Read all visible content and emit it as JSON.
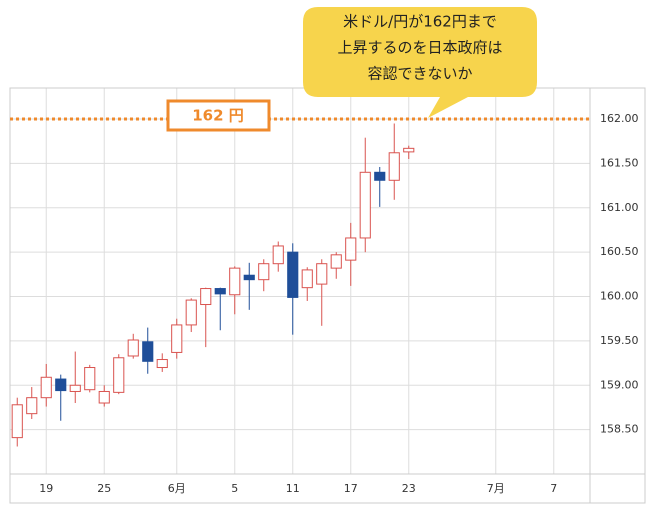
{
  "chart_data": {
    "type": "candlestick",
    "categories": [
      null,
      null,
      "19",
      null,
      null,
      null,
      "25",
      null,
      null,
      null,
      null,
      "6月",
      null,
      null,
      null,
      "5",
      null,
      null,
      null,
      "11",
      null,
      null,
      null,
      "17",
      null,
      null,
      null,
      "23",
      null,
      null,
      null,
      null,
      null,
      "7月",
      null,
      null,
      null,
      "7",
      null,
      null
    ],
    "series": [
      {
        "up_color": "#d9534f",
        "down_color": "#1f4e99",
        "open": [
          158.41,
          158.68,
          158.86,
          159.07,
          158.93,
          158.95,
          158.8,
          158.92,
          159.33,
          159.49,
          159.2,
          159.37,
          159.68,
          159.91,
          160.09,
          160.02,
          160.24,
          160.19,
          160.37,
          160.5,
          160.1,
          160.14,
          160.32,
          160.41,
          160.66,
          161.4,
          161.31,
          161.63,
          null,
          null,
          null,
          null,
          null,
          null,
          null,
          null,
          null,
          null,
          null,
          null
        ],
        "high": [
          158.86,
          158.98,
          159.24,
          159.12,
          159.38,
          159.23,
          159.0,
          159.35,
          159.58,
          159.65,
          159.36,
          159.75,
          159.98,
          160.1,
          160.1,
          160.34,
          160.38,
          160.42,
          160.62,
          160.6,
          160.33,
          160.42,
          160.5,
          160.83,
          161.79,
          161.46,
          161.95,
          161.7,
          null,
          null,
          null,
          null,
          null,
          null,
          null,
          null,
          null,
          null,
          null,
          null
        ],
        "low": [
          158.31,
          158.62,
          158.76,
          158.6,
          158.8,
          158.92,
          158.76,
          158.9,
          159.3,
          159.13,
          159.15,
          159.3,
          159.6,
          159.43,
          159.62,
          159.8,
          159.85,
          160.06,
          160.28,
          159.57,
          159.95,
          159.67,
          160.2,
          160.12,
          160.5,
          161.01,
          161.09,
          161.55,
          null,
          null,
          null,
          null,
          null,
          null,
          null,
          null,
          null,
          null,
          null,
          null
        ],
        "close": [
          158.78,
          158.86,
          159.09,
          158.94,
          159.0,
          159.2,
          158.93,
          159.31,
          159.51,
          159.27,
          159.29,
          159.68,
          159.96,
          160.09,
          160.03,
          160.32,
          160.19,
          160.37,
          160.57,
          159.99,
          160.3,
          160.37,
          160.47,
          160.66,
          161.4,
          161.31,
          161.62,
          161.67,
          null,
          null,
          null,
          null,
          null,
          null,
          null,
          null,
          null,
          null,
          null,
          null
        ]
      }
    ],
    "ylim": [
      158.0,
      162.35
    ],
    "yticks": [
      {
        "value": 158.5,
        "label": "158.50"
      },
      {
        "value": 159,
        "label": "159.00"
      },
      {
        "value": 159.5,
        "label": "159.50"
      },
      {
        "value": 160,
        "label": "160.00"
      },
      {
        "value": 160.5,
        "label": "160.50"
      },
      {
        "value": 161,
        "label": "161.00"
      },
      {
        "value": 161.5,
        "label": "161.50"
      },
      {
        "value": 162,
        "label": "162.00"
      }
    ],
    "grid": true,
    "reference_line": {
      "value": 162,
      "label": "162 円",
      "color": "#ef8a2c"
    },
    "annotation": [
      "米ドル/円が162円まで",
      "上昇するのを日本政府は",
      "容認できないか"
    ]
  }
}
